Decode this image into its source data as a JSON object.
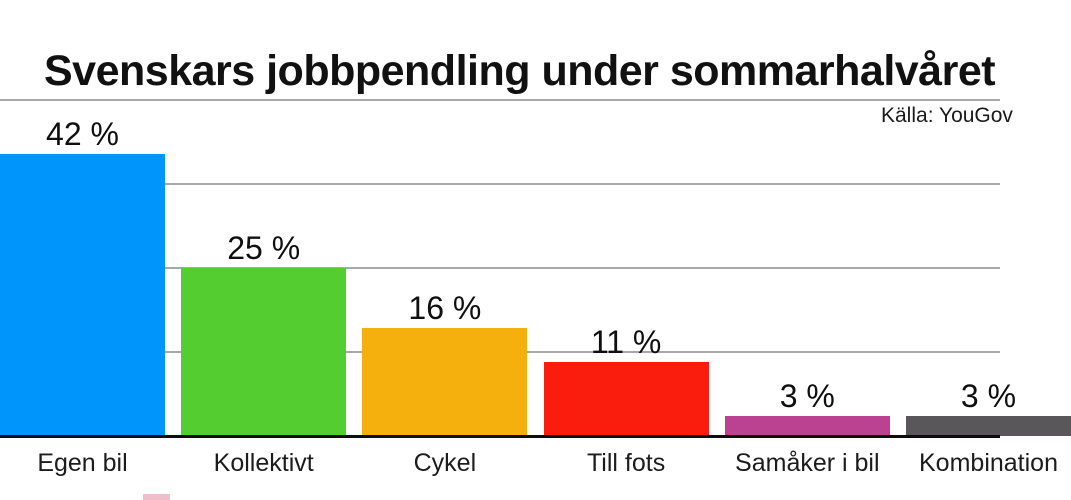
{
  "header": {
    "title": "Svenskars jobbpendling under sommarhalvåret",
    "source": "Källa: YouGov"
  },
  "chart_data": {
    "type": "bar",
    "title": "Svenskars jobbpendling under sommarhalvåret",
    "source": "Källa: YouGov",
    "categories": [
      "Egen bil",
      "Kollektivt",
      "Cykel",
      "Till fots",
      "Samåker i bil",
      "Kombination"
    ],
    "values": [
      42,
      25,
      16,
      11,
      3,
      3
    ],
    "value_labels": [
      "42 %",
      "25 %",
      "16 %",
      "11 %",
      "3 %",
      "3 %"
    ],
    "bar_colors": [
      "#0095fa",
      "#54cd30",
      "#f6b00e",
      "#fa1d0e",
      "#ba4290",
      "#595759"
    ],
    "xlabel": "",
    "ylabel": "",
    "ylim": [
      0,
      50
    ],
    "gridline_values": [
      12.5,
      25,
      37.5,
      50
    ],
    "grid": true,
    "legend": false,
    "axis_color": "#0d0d0d",
    "gridline_color": "#a8a8a8"
  }
}
